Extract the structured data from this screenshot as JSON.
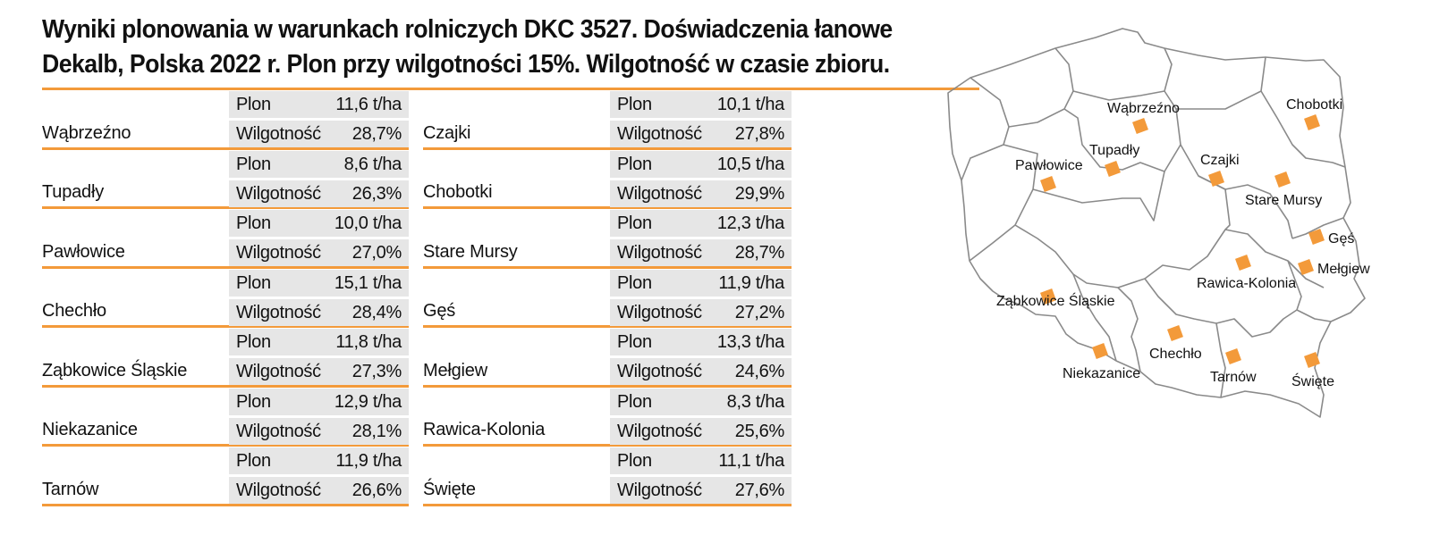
{
  "title": {
    "line1": "Wyniki plonowania w warunkach rolniczych DKC 3527. Doświadczenia łanowe",
    "line2": "Dekalb, Polska 2022 r. Plon przy wilgotności 15%. Wilgotność w czasie zbioru."
  },
  "labels": {
    "yield": "Plon",
    "moisture": "Wilgotność"
  },
  "colors": {
    "accent": "#f39a3a",
    "cell_bg": "#e6e6e6",
    "map_line": "#8a8a8a"
  },
  "left_sites": [
    {
      "name": "Wąbrzeźno",
      "yield": "11,6 t/ha",
      "moisture": "28,7%"
    },
    {
      "name": "Tupadły",
      "yield": "8,6 t/ha",
      "moisture": "26,3%"
    },
    {
      "name": "Pawłowice",
      "yield": "10,0 t/ha",
      "moisture": "27,0%"
    },
    {
      "name": "Chechło",
      "yield": "15,1 t/ha",
      "moisture": "28,4%"
    },
    {
      "name": "Ząbkowice Śląskie",
      "yield": "11,8 t/ha",
      "moisture": "27,3%"
    },
    {
      "name": "Niekazanice",
      "yield": "12,9 t/ha",
      "moisture": "28,1%"
    },
    {
      "name": "Tarnów",
      "yield": "11,9 t/ha",
      "moisture": "26,6%"
    }
  ],
  "right_sites": [
    {
      "name": "Czajki",
      "yield": "10,1 t/ha",
      "moisture": "27,8%"
    },
    {
      "name": "Chobotki",
      "yield": "10,5 t/ha",
      "moisture": "29,9%"
    },
    {
      "name": "Stare Mursy",
      "yield": "12,3 t/ha",
      "moisture": "28,7%"
    },
    {
      "name": "Gęś",
      "yield": "11,9 t/ha",
      "moisture": "27,2%"
    },
    {
      "name": "Mełgiew",
      "yield": "13,3 t/ha",
      "moisture": "24,6%"
    },
    {
      "name": "Rawica-Kolonia",
      "yield": "8,3 t/ha",
      "moisture": "25,6%"
    },
    {
      "name": "Święte",
      "yield": "11,1 t/ha",
      "moisture": "27,6%"
    }
  ],
  "map_labels": {
    "wabrzezno": "Wąbrzeźno",
    "chobotki": "Chobotki",
    "tupadly": "Tupadły",
    "pawlowice": "Pawłowice",
    "czajki": "Czajki",
    "stare_mursy": "Stare Mursy",
    "ges": "Gęś",
    "melgiew": "Mełgiew",
    "rawica": "Rawica-Kolonia",
    "zabkowice": "Ząbkowice Śląskie",
    "chechlo": "Chechło",
    "niekazanice": "Niekazanice",
    "tarnow": "Tarnów",
    "swiete": "Święte"
  }
}
